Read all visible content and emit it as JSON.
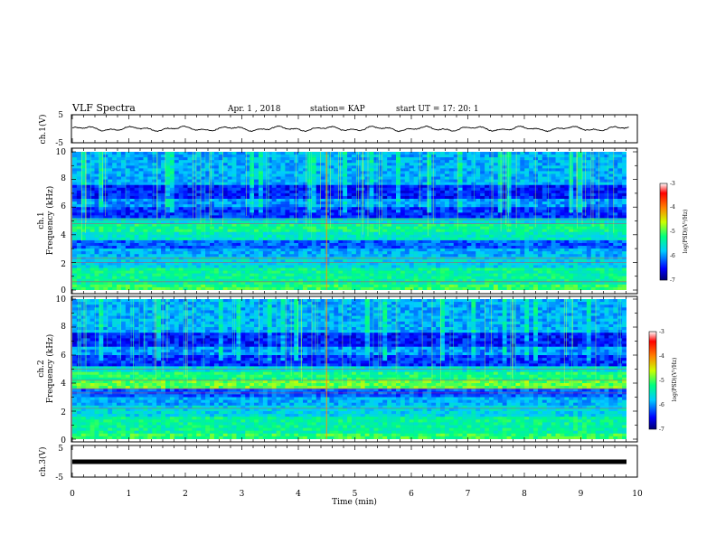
{
  "header": {
    "title": "VLF Spectra",
    "date": "Apr. 1  , 2018",
    "station": "station= KAP",
    "start": "start  UT  =    17: 20: 1"
  },
  "chart_data": [
    {
      "type": "line",
      "ylabel": "ch.1(V)",
      "ylim": [
        -5,
        5
      ],
      "yticks": [
        "5",
        "-5"
      ],
      "xlim": [
        0,
        10
      ],
      "description_values": "waveform amplitude oscillating around 0 V between about -1 and +1 V"
    },
    {
      "type": "heatmap",
      "ylabel": "ch.1\nFrequency (kHz)",
      "ylabel_line1": "ch.1",
      "ylabel_line2": "Frequency (kHz)",
      "ylim": [
        0,
        10
      ],
      "yticks": [
        "0",
        "2",
        "4",
        "6",
        "8",
        "10"
      ],
      "xlim": [
        0,
        10
      ],
      "colorbar": {
        "label": "log(PSD)(V²/Hz)",
        "range": [
          -7,
          -3
        ],
        "ticks": [
          "-3",
          "-4",
          "-5",
          "-6",
          "-7"
        ]
      }
    },
    {
      "type": "heatmap",
      "ylabel_line1": "ch.2",
      "ylabel_line2": "Frequency (kHz)",
      "ylim": [
        0,
        10
      ],
      "yticks": [
        "0",
        "2",
        "4",
        "6",
        "8",
        "10"
      ],
      "xlim": [
        0,
        10
      ],
      "colorbar": {
        "label": "log(PSD)(V²/Hz)",
        "range": [
          -7,
          -3
        ],
        "ticks": [
          "-3",
          "-4",
          "-5",
          "-6",
          "-7"
        ]
      }
    },
    {
      "type": "line",
      "ylabel": "ch.3(V)",
      "ylim": [
        -5,
        5
      ],
      "yticks": [
        "5",
        "-5"
      ],
      "xlim": [
        0,
        9.85
      ],
      "constant_value": 0
    }
  ],
  "xaxis": {
    "label": "Time  (min)",
    "ticks": [
      "0",
      "1",
      "2",
      "3",
      "4",
      "5",
      "6",
      "7",
      "8",
      "9",
      "10"
    ]
  }
}
